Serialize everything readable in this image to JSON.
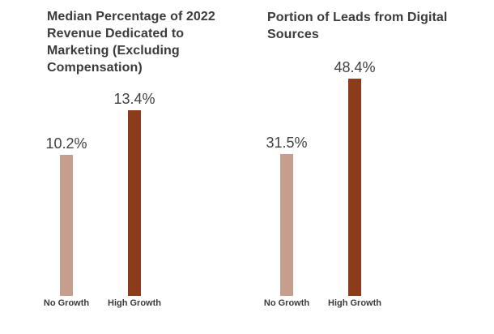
{
  "page": {
    "background_color": "#ffffff"
  },
  "colors": {
    "no_growth_bar": "#c69e8e",
    "high_growth_bar": "#8b3c1b",
    "title_text": "#3b3b3b",
    "value_text": "#414141"
  },
  "chart_data": [
    {
      "type": "bar",
      "title": "Median Percentage of 2022 Revenue Dedicated to Marketing (Excluding Compensation)",
      "categories": [
        "No Growth",
        "High Growth"
      ],
      "values": [
        10.2,
        13.4
      ],
      "value_labels": [
        "10.2%",
        "13.4%"
      ],
      "bar_colors": [
        "#c69e8e",
        "#8b3c1b"
      ],
      "xlabel": "",
      "ylabel": "",
      "ylim": [
        0,
        13.4
      ],
      "grid": false,
      "legend": "none",
      "value_label_position": "above-bar"
    },
    {
      "type": "bar",
      "title": "Portion of Leads from Digital Sources",
      "categories": [
        "No Growth",
        "High Growth"
      ],
      "values": [
        31.5,
        48.4
      ],
      "value_labels": [
        "31.5%",
        "48.4%"
      ],
      "bar_colors": [
        "#c69e8e",
        "#8b3c1b"
      ],
      "xlabel": "",
      "ylabel": "",
      "ylim": [
        0,
        48.4
      ],
      "grid": false,
      "legend": "none",
      "value_label_position": "above-bar"
    }
  ]
}
